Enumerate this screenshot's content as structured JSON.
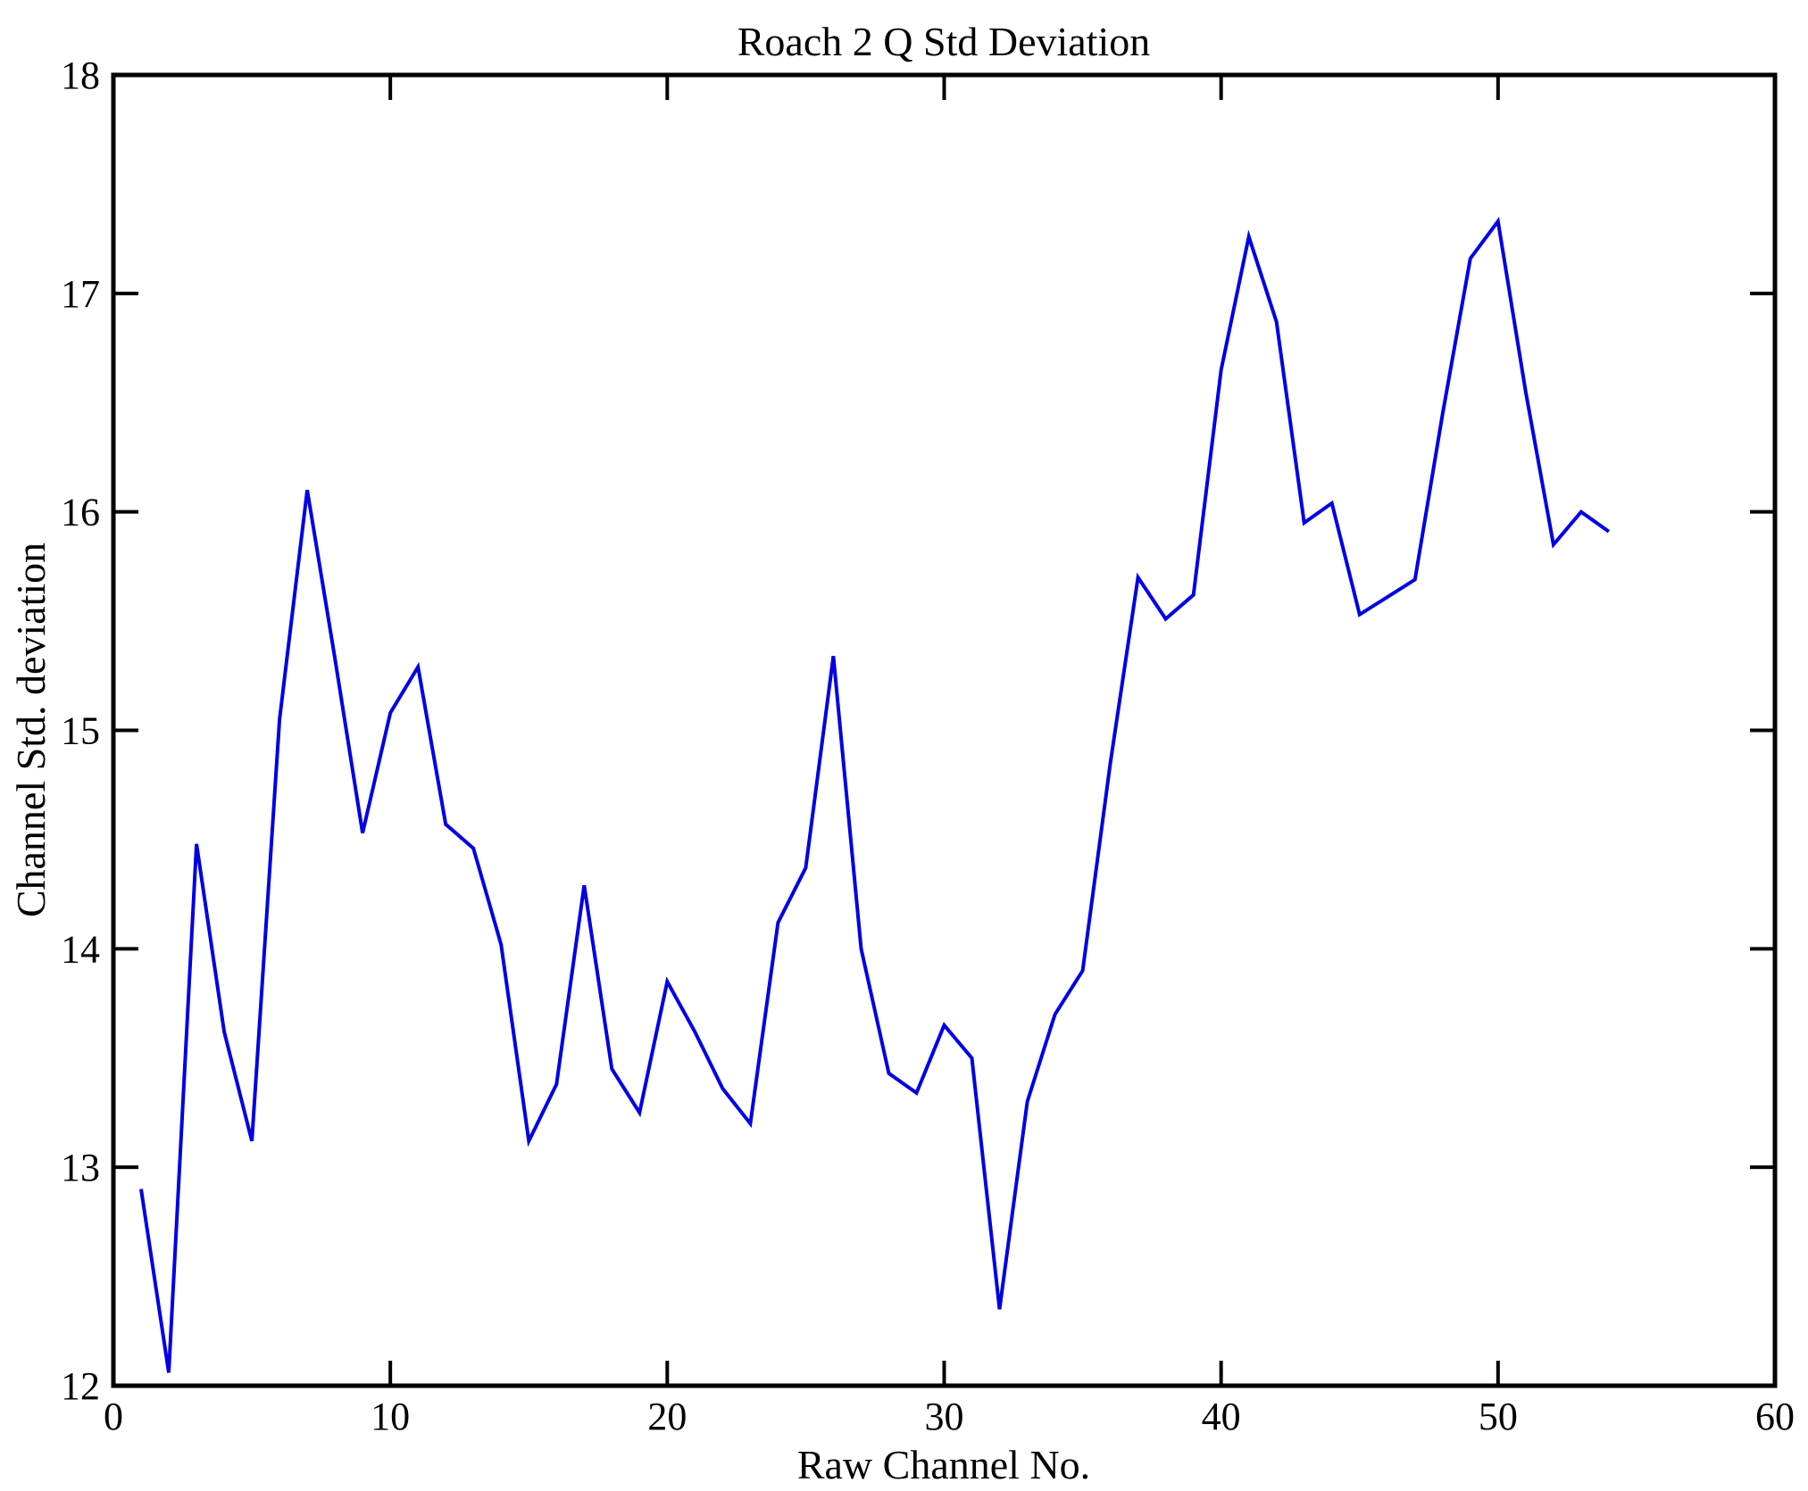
{
  "figure": {
    "title": "Roach 2 Q Std Deviation",
    "xlabel": "Raw Channel No.",
    "ylabel": "Channel Std. deviation"
  },
  "chart_data": {
    "type": "line",
    "title": "Roach 2 Q Std Deviation",
    "xlabel": "Raw Channel No.",
    "ylabel": "Channel Std. deviation",
    "series_name": "channel-std-deviation",
    "x": [
      1,
      2,
      3,
      4,
      5,
      6,
      7,
      8,
      9,
      10,
      11,
      12,
      13,
      14,
      15,
      16,
      17,
      18,
      19,
      20,
      21,
      22,
      23,
      24,
      25,
      26,
      27,
      28,
      29,
      30,
      31,
      32,
      33,
      34,
      35,
      36,
      37,
      38,
      39,
      40,
      41,
      42,
      43,
      44,
      45,
      46,
      47,
      48,
      49,
      50,
      51,
      52,
      53,
      54
    ],
    "values": [
      12.9,
      12.06,
      14.48,
      13.62,
      13.12,
      15.05,
      16.1,
      15.33,
      14.53,
      15.08,
      15.29,
      14.57,
      14.46,
      14.02,
      13.12,
      13.38,
      14.29,
      13.45,
      13.25,
      13.85,
      13.62,
      13.36,
      13.2,
      14.12,
      14.37,
      15.34,
      14.0,
      13.43,
      13.34,
      13.65,
      13.5,
      12.35,
      13.3,
      13.7,
      13.9,
      14.85,
      15.7,
      15.51,
      15.62,
      16.65,
      17.26,
      16.87,
      15.95,
      16.04,
      15.53,
      15.61,
      15.69,
      16.45,
      17.16,
      17.33,
      16.55,
      15.85,
      16.0,
      15.91
    ],
    "xlim": [
      0,
      60
    ],
    "ylim": [
      12,
      18
    ],
    "xticks": [
      0,
      10,
      20,
      30,
      40,
      50,
      60
    ],
    "yticks": [
      12,
      13,
      14,
      15,
      16,
      17,
      18
    ],
    "grid": false,
    "legend": null,
    "tick_direction": "in",
    "line_color": "#0000e6",
    "axis_color": "#000000",
    "background": "#ffffff"
  }
}
